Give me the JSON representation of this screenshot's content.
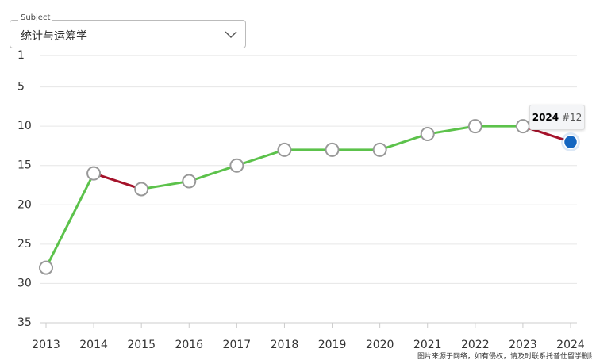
{
  "filter": {
    "label": "Subject",
    "value": "统计与运筹学"
  },
  "watermark": "图片来源于网络，如有侵权，请及时联系托普仕留学删除",
  "chart_data": {
    "type": "line",
    "categories": [
      "2013",
      "2014",
      "2015",
      "2016",
      "2017",
      "2018",
      "2019",
      "2020",
      "2021",
      "2022",
      "2023",
      "2024"
    ],
    "values": [
      28,
      16,
      18,
      17,
      15,
      13,
      13,
      13,
      11,
      10,
      10,
      12
    ],
    "value_labels": [
      null,
      null,
      null,
      null,
      null,
      null,
      null,
      null,
      null,
      null,
      null,
      "#12"
    ],
    "ylim": [
      0,
      35
    ],
    "yticks": [
      1,
      5,
      10,
      15,
      20,
      25,
      30,
      35
    ],
    "y_inverted": true,
    "grid": true,
    "colors": {
      "improve": "#5cc24b",
      "decline": "#a5122a",
      "point": "#ffffff",
      "highlight": "#1466c0"
    }
  }
}
